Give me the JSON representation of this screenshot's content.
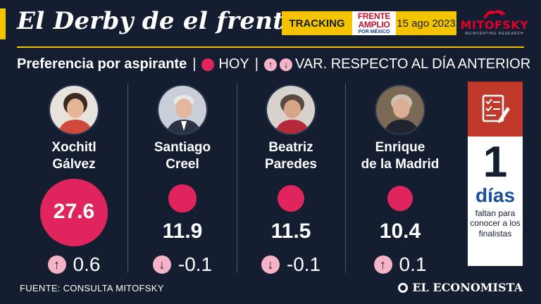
{
  "header": {
    "title": "El Derby de el frente",
    "tracking_label": "TRACKING",
    "frente_logo": {
      "line1": "FRENTE",
      "line2": "AMPLIO",
      "line3": "POR MÉXICO"
    },
    "date": "15 ago 2023",
    "mitofsky_name": "MITOFSKY",
    "mitofsky_tagline": "REINVENTING RESEARCH"
  },
  "subtitle": {
    "main": "Preferencia por aspirante",
    "sep1": "|",
    "legend_hoy": "HOY",
    "sep2": "|",
    "up_glyph": "↑",
    "down_glyph": "↓",
    "legend_var": "VAR. RESPECTO AL DÍA ANTERIOR"
  },
  "chart_data": {
    "type": "bubble",
    "title": "Preferencia por aspirante",
    "categories": [
      "Xochitl Gálvez",
      "Santiago Creel",
      "Beatriz Paredes",
      "Enrique de la Madrid"
    ],
    "series": [
      {
        "name": "HOY",
        "values": [
          27.6,
          11.9,
          11.5,
          10.4
        ]
      },
      {
        "name": "VAR. RESPECTO AL DÍA ANTERIOR",
        "values": [
          0.6,
          -0.1,
          -0.1,
          0.1
        ]
      }
    ]
  },
  "candidates": [
    {
      "name_line1": "Xochitl",
      "name_line2": "Gálvez",
      "value": "27.6",
      "var": "0.6",
      "arrow": "↑"
    },
    {
      "name_line1": "Santiago",
      "name_line2": "Creel",
      "value": "11.9",
      "var": "-0.1",
      "arrow": "↓"
    },
    {
      "name_line1": "Beatriz",
      "name_line2": "Paredes",
      "value": "11.5",
      "var": "-0.1",
      "arrow": "↓"
    },
    {
      "name_line1": "Enrique",
      "name_line2": "de la Madrid",
      "value": "10.4",
      "var": "0.1",
      "arrow": "↑"
    }
  ],
  "countdown": {
    "number": "1",
    "unit": "días",
    "text": "faltan para conocer a los finalistas",
    "icon": "checklist-icon"
  },
  "footer": {
    "source": "FUENTE: CONSULTA MITOFSKY",
    "brand": "EL ECONOMISTA"
  },
  "colors": {
    "background": "#141e30",
    "accent_yellow": "#f5c400",
    "bubble_pink": "#e0245e",
    "arrow_light_pink": "#f6b3c6",
    "countdown_red": "#c0392b",
    "countdown_blue": "#1a4f9c"
  }
}
